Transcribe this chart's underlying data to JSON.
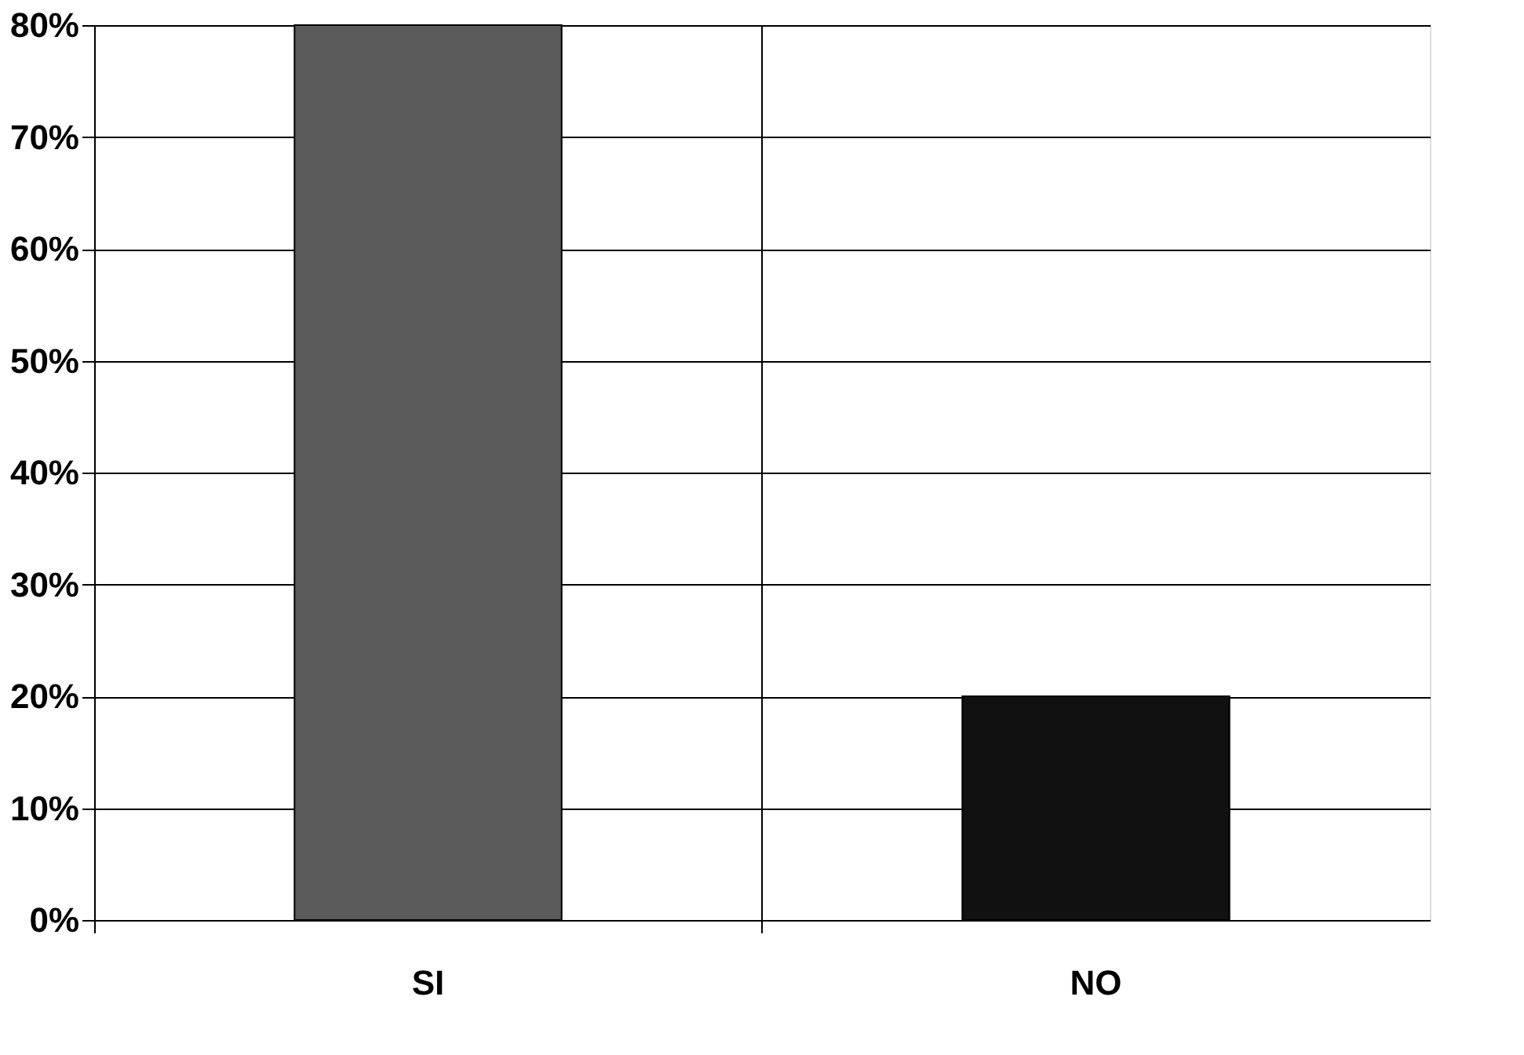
{
  "chart_data": {
    "type": "bar",
    "categories": [
      "SI",
      "NO"
    ],
    "values": [
      80,
      20
    ],
    "colors": [
      "#5a5a5a",
      "#111111"
    ],
    "ylim": [
      0,
      80
    ],
    "yticks": [
      {
        "value": 0,
        "label": "0%"
      },
      {
        "value": 10,
        "label": "10%"
      },
      {
        "value": 20,
        "label": "20%"
      },
      {
        "value": 30,
        "label": "30%"
      },
      {
        "value": 40,
        "label": "40%"
      },
      {
        "value": 50,
        "label": "50%"
      },
      {
        "value": 60,
        "label": "60%"
      },
      {
        "value": 70,
        "label": "70%"
      },
      {
        "value": 80,
        "label": "80%"
      }
    ],
    "grid": true
  }
}
